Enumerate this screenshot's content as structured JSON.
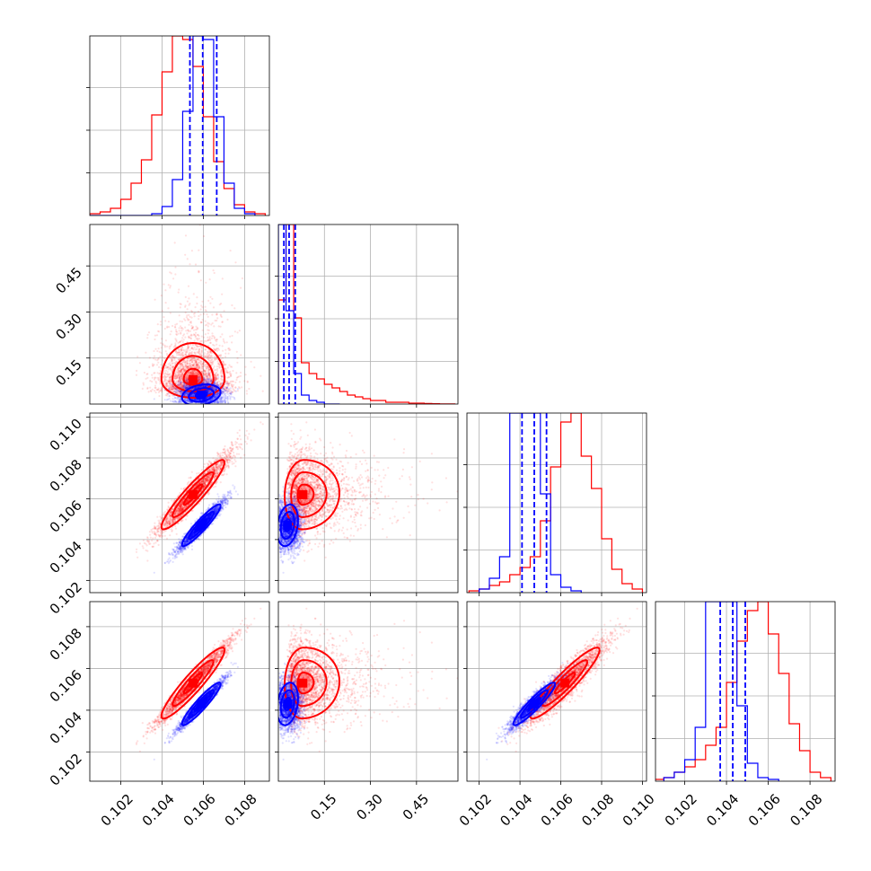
{
  "chart_data": {
    "type": "corner",
    "title": "",
    "grid": true,
    "colors": {
      "series_a": "#0000ff",
      "series_b": "#ff0000",
      "quantile_line": "#0000ff"
    },
    "parameters": [
      {
        "name": "",
        "range": [
          0.1005,
          0.1092
        ],
        "ticks": [
          0.102,
          0.104,
          0.106,
          0.108
        ],
        "tick_labels": [
          "0.102",
          "0.104",
          "0.106",
          "0.108"
        ]
      },
      {
        "name": "",
        "range": [
          0.0,
          0.585
        ],
        "ticks": [
          0.15,
          0.3,
          0.45
        ],
        "tick_labels": [
          "0.15",
          "0.30",
          "0.45"
        ]
      },
      {
        "name": "",
        "range": [
          0.1014,
          0.1102
        ],
        "ticks": [
          0.102,
          0.104,
          0.106,
          0.108,
          0.11
        ],
        "tick_labels": [
          "0.102",
          "0.104",
          "0.106",
          "0.108",
          "0.110"
        ]
      },
      {
        "name": "",
        "range": [
          0.1006,
          0.1092
        ],
        "ticks": [
          0.102,
          0.104,
          0.106,
          0.108
        ],
        "tick_labels": [
          "0.102",
          "0.104",
          "0.106",
          "0.108"
        ]
      }
    ],
    "series": [
      {
        "name": "",
        "color": "#0000ff",
        "mean": [
          0.1059,
          0.03,
          0.1047,
          0.1043
        ],
        "sd": [
          0.00055,
          0.02,
          0.0006,
          0.0006
        ],
        "quantiles": [
          [
            0.10535,
            0.10597,
            0.10665
          ],
          [
            0.018,
            0.035,
            0.055
          ],
          [
            0.1041,
            0.1047,
            0.1053
          ],
          [
            0.1037,
            0.1043,
            0.1049
          ]
        ],
        "histograms": [
          {
            "edges": [
              0.1005,
              0.101,
              0.1015,
              0.102,
              0.1025,
              0.103,
              0.1035,
              0.104,
              0.1045,
              0.105,
              0.1055,
              0.106,
              0.1065,
              0.107,
              0.1075,
              0.108,
              0.1085
            ],
            "counts": [
              0,
              0,
              0,
              0,
              0,
              0,
              1,
              5,
              20,
              58,
              100,
              98,
              55,
              18,
              4,
              1
            ]
          },
          {
            "edges": [
              0.0,
              0.025,
              0.05,
              0.075,
              0.1,
              0.125,
              0.15,
              0.175,
              0.2
            ],
            "counts": [
              100,
              52,
              17,
              5,
              2,
              1,
              0,
              0
            ]
          },
          {
            "edges": [
              0.102,
              0.1025,
              0.103,
              0.1035,
              0.104,
              0.1045,
              0.105,
              0.1055,
              0.106,
              0.1065,
              0.107
            ],
            "counts": [
              2,
              8,
              20,
              100,
              100,
              100,
              55,
              10,
              3,
              1
            ]
          },
          {
            "edges": [
              0.101,
              0.1015,
              0.102,
              0.1025,
              0.103,
              0.1035,
              0.104,
              0.1045,
              0.105,
              0.1055,
              0.106,
              0.1065
            ],
            "counts": [
              2,
              5,
              12,
              30,
              100,
              100,
              100,
              42,
              10,
              2,
              1
            ]
          }
        ]
      },
      {
        "name": "",
        "color": "#ff0000",
        "mean": [
          0.1055,
          0.1,
          0.1062,
          0.1053
        ],
        "sd": [
          0.0009,
          0.07,
          0.001,
          0.001
        ],
        "histograms": [
          {
            "edges": [
              0.1005,
              0.101,
              0.1015,
              0.102,
              0.1025,
              0.103,
              0.1035,
              0.104,
              0.1045,
              0.105,
              0.1055,
              0.106,
              0.1065,
              0.107,
              0.1075,
              0.108,
              0.1085,
              0.109
            ],
            "counts": [
              1,
              2,
              4,
              9,
              18,
              31,
              56,
              80,
              100,
              98,
              83,
              55,
              30,
              15,
              6,
              2,
              1
            ]
          },
          {
            "edges": [
              0.0,
              0.025,
              0.05,
              0.075,
              0.1,
              0.125,
              0.15,
              0.175,
              0.2,
              0.225,
              0.25,
              0.275,
              0.3,
              0.325,
              0.35,
              0.375,
              0.4,
              0.425,
              0.45,
              0.475,
              0.5,
              0.525,
              0.55,
              0.575
            ],
            "counts": [
              58,
              100,
              48,
              23,
              17,
              14,
              11,
              9,
              7,
              5,
              4,
              3,
              2,
              2,
              1,
              1,
              1,
              0.5,
              0.5,
              0.3,
              0.2,
              0.1,
              0.1
            ]
          },
          {
            "edges": [
              0.1015,
              0.102,
              0.1025,
              0.103,
              0.1035,
              0.104,
              0.1045,
              0.105,
              0.1055,
              0.106,
              0.1065,
              0.107,
              0.1075,
              0.108,
              0.1085,
              0.109,
              0.1095,
              0.11
            ],
            "counts": [
              1,
              2,
              4,
              6,
              10,
              14,
              20,
              40,
              70,
              95,
              100,
              76,
              58,
              30,
              13,
              5,
              2
            ]
          },
          {
            "edges": [
              0.1005,
              0.101,
              0.1015,
              0.102,
              0.1025,
              0.103,
              0.1035,
              0.104,
              0.1045,
              0.105,
              0.1055,
              0.106,
              0.1065,
              0.107,
              0.1075,
              0.108,
              0.1085,
              0.109
            ],
            "counts": [
              1,
              2,
              5,
              8,
              12,
              20,
              30,
              55,
              78,
              95,
              100,
              82,
              60,
              32,
              17,
              5,
              2
            ]
          }
        ]
      }
    ]
  }
}
